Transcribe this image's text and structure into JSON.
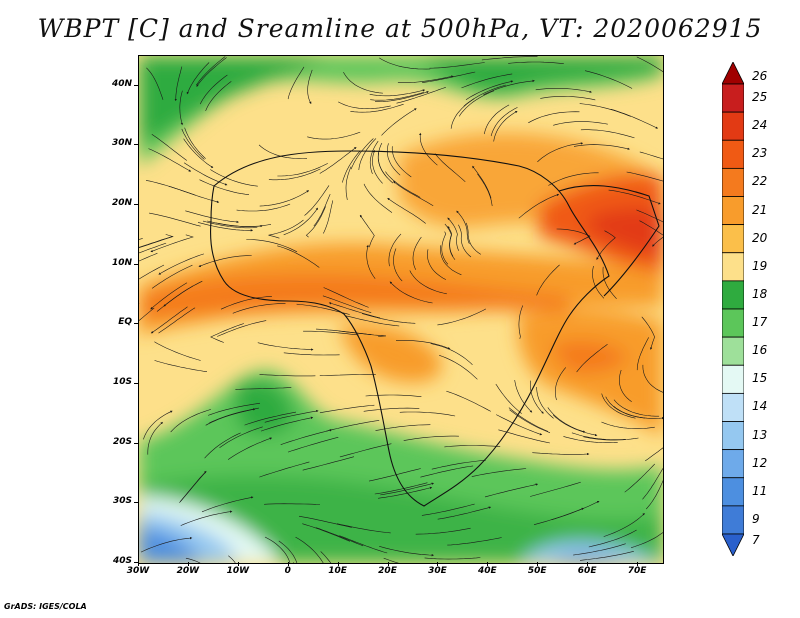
{
  "title": "WBPT [C] and Sreamline at 500hPa, VT: 2020062915",
  "footer": "GrADS: IGES/COLA",
  "y_axis": {
    "labels": [
      "40N",
      "30N",
      "20N",
      "10N",
      "EQ",
      "10S",
      "20S",
      "30S",
      "40S"
    ],
    "values": [
      40,
      30,
      20,
      10,
      0,
      -10,
      -20,
      -30,
      -40
    ],
    "range": [
      -40,
      45
    ]
  },
  "x_axis": {
    "labels": [
      "30W",
      "20W",
      "10W",
      "0",
      "10E",
      "20E",
      "30E",
      "40E",
      "50E",
      "60E",
      "70E"
    ],
    "values": [
      -30,
      -20,
      -10,
      0,
      10,
      20,
      30,
      40,
      50,
      60,
      70
    ],
    "range": [
      -30,
      75
    ]
  },
  "legend": {
    "labels": [
      "26",
      "25",
      "24",
      "23",
      "22",
      "21",
      "20",
      "19",
      "18",
      "17",
      "16",
      "15",
      "14",
      "13",
      "12",
      "11",
      "9",
      "7"
    ],
    "colors": [
      "#a00000",
      "#c81e1e",
      "#e23a14",
      "#f05a14",
      "#f47a1e",
      "#f89c2c",
      "#fbbf4a",
      "#fde08a",
      "#2fab3f",
      "#5cc65a",
      "#9ee09a",
      "#e4f9f4",
      "#bfe0f7",
      "#95c8f0",
      "#6eaaea",
      "#4d8fe0",
      "#3f7cd7",
      "#2a60cc"
    ]
  },
  "colors": {
    "frame": "#000000",
    "streamline": "#1a1a1a"
  }
}
